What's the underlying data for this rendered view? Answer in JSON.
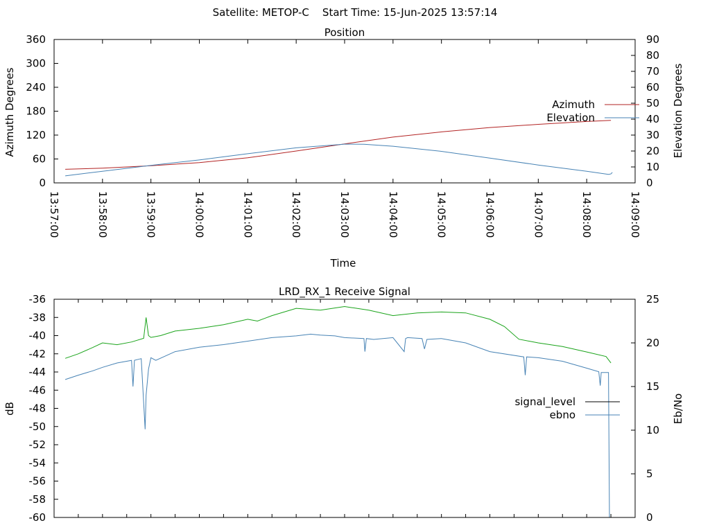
{
  "header": {
    "text": "Satellite: METOP-C    Start Time: 15-Jun-2025 13:57:14"
  },
  "chart_data": [
    {
      "type": "line",
      "title": "Position",
      "xlabel": "Time",
      "ylabel_left": "Azimuth Degrees",
      "ylabel_right": "Elevation Degrees",
      "x_ticks": [
        "13:57:00",
        "13:58:00",
        "13:59:00",
        "14:00:00",
        "14:01:00",
        "14:02:00",
        "14:03:00",
        "14:04:00",
        "14:05:00",
        "14:06:00",
        "14:07:00",
        "14:08:00",
        "14:09:00"
      ],
      "x_range_min": [
        0,
        12
      ],
      "ylim_left": [
        0,
        360
      ],
      "y_ticks_left": [
        0,
        60,
        120,
        180,
        240,
        300,
        360
      ],
      "ylim_right": [
        0,
        90
      ],
      "y_ticks_right": [
        0,
        10,
        20,
        30,
        40,
        50,
        60,
        70,
        80,
        90
      ],
      "legend_position": "right",
      "series": [
        {
          "name": "Azimuth",
          "axis": "left",
          "color": "#b22222",
          "x": [
            0.23,
            1,
            2,
            3,
            4,
            5,
            6,
            7,
            8,
            9,
            10,
            11,
            11.5
          ],
          "values": [
            34,
            37,
            43,
            51,
            63,
            80,
            98,
            115,
            128,
            139,
            147,
            154,
            157
          ]
        },
        {
          "name": "Elevation",
          "axis": "right",
          "color": "#4682b4",
          "x": [
            0.23,
            1,
            2,
            3,
            4,
            5,
            6,
            6.4,
            7,
            8,
            9,
            10,
            11,
            11.45,
            11.5,
            11.53
          ],
          "values": [
            4.4,
            7.3,
            11,
            14.4,
            18.3,
            22,
            24.3,
            24.2,
            23,
            19.8,
            15.5,
            11.2,
            7.3,
            5.3,
            5.6,
            6.6
          ]
        }
      ]
    },
    {
      "type": "line",
      "title": "LRD_RX_1 Receive Signal",
      "ylabel_left": "dB",
      "ylabel_right": "Eb/No",
      "x_range_min": [
        0,
        12
      ],
      "ylim_left": [
        -60,
        -36
      ],
      "y_ticks_left": [
        -60,
        -58,
        -56,
        -54,
        -52,
        -50,
        -48,
        -46,
        -44,
        -42,
        -40,
        -38,
        -36
      ],
      "ylim_right": [
        0,
        25
      ],
      "y_ticks_right": [
        0,
        5,
        10,
        15,
        20,
        25
      ],
      "legend_position": "right",
      "series": [
        {
          "name": "signal_level",
          "axis": "left",
          "color": "#000000",
          "plot_color": "#19a319",
          "x": [
            0.23,
            0.5,
            0.8,
            1.0,
            1.3,
            1.6,
            1.85,
            1.9,
            1.95,
            2.0,
            2.2,
            2.5,
            3.0,
            3.5,
            4.0,
            4.2,
            4.5,
            5.0,
            5.5,
            6.0,
            6.5,
            7.0,
            7.5,
            8.0,
            8.5,
            9.0,
            9.3,
            9.6,
            10.0,
            10.5,
            11.0,
            11.4,
            11.5
          ],
          "values": [
            -42.5,
            -42.0,
            -41.3,
            -40.8,
            -41.0,
            -40.7,
            -40.3,
            -38.0,
            -40.0,
            -40.2,
            -40.0,
            -39.5,
            -39.2,
            -38.8,
            -38.2,
            -38.4,
            -37.8,
            -37.0,
            -37.2,
            -36.8,
            -37.2,
            -37.8,
            -37.5,
            -37.4,
            -37.5,
            -38.2,
            -39.0,
            -40.4,
            -40.8,
            -41.2,
            -41.8,
            -42.3,
            -43.0
          ]
        },
        {
          "name": "ebno",
          "axis": "right",
          "color": "#4682b4",
          "plot_color": "#4682b4",
          "x": [
            0.23,
            0.5,
            0.8,
            1.0,
            1.3,
            1.6,
            1.63,
            1.66,
            1.8,
            1.88,
            1.9,
            1.95,
            2.0,
            2.1,
            2.5,
            3.0,
            3.5,
            4.0,
            4.5,
            5.0,
            5.3,
            5.5,
            5.8,
            6.0,
            6.4,
            6.42,
            6.45,
            6.6,
            7.0,
            7.23,
            7.26,
            7.3,
            7.6,
            7.65,
            7.7,
            8.0,
            8.5,
            9.0,
            9.7,
            9.73,
            9.76,
            10.0,
            10.5,
            11.0,
            11.25,
            11.28,
            11.3,
            11.45,
            11.47,
            11.5
          ],
          "values": [
            15.8,
            16.3,
            16.8,
            17.2,
            17.7,
            18.0,
            15.0,
            18.0,
            18.2,
            10.1,
            14.0,
            17.0,
            18.3,
            18.0,
            19.0,
            19.5,
            19.8,
            20.2,
            20.6,
            20.8,
            21.0,
            20.9,
            20.8,
            20.6,
            20.5,
            19.0,
            20.5,
            20.4,
            20.6,
            19.0,
            20.5,
            20.6,
            20.5,
            19.3,
            20.4,
            20.5,
            20.0,
            19.0,
            18.4,
            16.3,
            18.4,
            18.3,
            17.9,
            17.1,
            16.7,
            15.1,
            16.6,
            16.6,
            0.0,
            0.0
          ]
        }
      ]
    }
  ]
}
